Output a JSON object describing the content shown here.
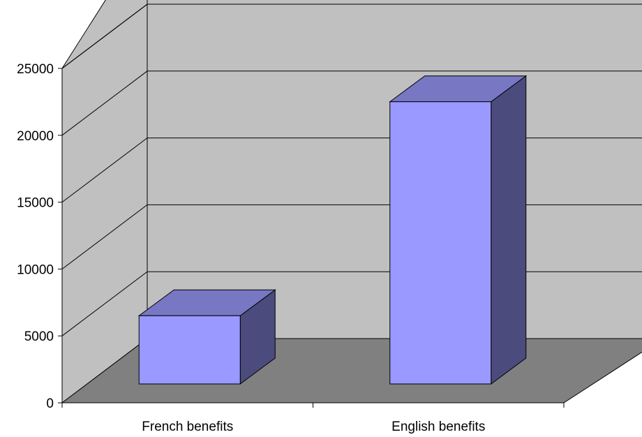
{
  "chart_data": {
    "type": "bar",
    "title": "",
    "xlabel": "",
    "ylabel": "",
    "categories": [
      "French benefits",
      "English benefits"
    ],
    "values": [
      5100,
      21100
    ],
    "ylim": [
      0,
      25000
    ],
    "yticks": [
      0,
      5000,
      10000,
      15000,
      20000,
      25000
    ],
    "ytick_labels": [
      "0",
      "5000",
      "10000",
      "15000",
      "20000",
      "25000"
    ],
    "grid": true,
    "legend": "none",
    "three_d": true,
    "colors": {
      "back_wall": "#c0c0c0",
      "side_wall": "#c0c0c0",
      "floor": "#808080",
      "bar_front": "#9999ff",
      "bar_top": "#7777c4",
      "bar_side": "#4b4b7d",
      "gridline": "#000000"
    }
  }
}
